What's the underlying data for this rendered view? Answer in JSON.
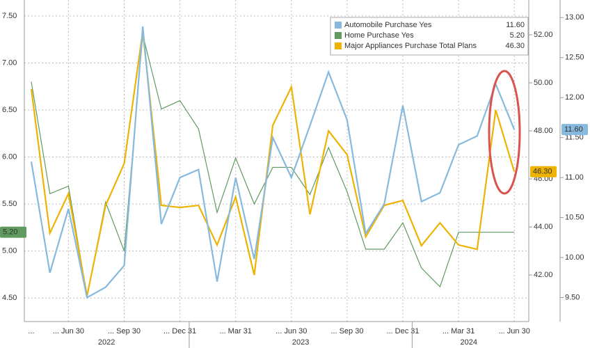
{
  "chart_data": {
    "type": "line",
    "categories": [
      "...",
      null,
      "... Jun 30",
      null,
      null,
      "... Sep 30",
      null,
      null,
      "... Dec 31",
      null,
      null,
      "... Mar 31",
      null,
      null,
      "... Jun 30",
      null,
      null,
      "... Sep 30",
      null,
      null,
      "... Dec 31",
      null,
      null,
      "... Mar 31",
      null,
      null,
      "... Jun 30"
    ],
    "years": [
      "2022",
      "2023",
      "2024"
    ],
    "series": [
      {
        "name": "Automobile Purchase Yes",
        "color": "#86b9dd",
        "axis": "y3",
        "last_label": "11.60",
        "values": [
          11.2,
          9.81,
          10.61,
          9.5,
          9.63,
          9.9,
          12.89,
          10.42,
          11.0,
          11.1,
          9.7,
          11.0,
          9.98,
          11.5,
          11.0,
          11.65,
          12.32,
          11.72,
          10.3,
          10.67,
          11.9,
          10.7,
          10.81,
          11.41,
          11.52,
          12.17,
          11.6
        ]
      },
      {
        "name": "Home Purchase Yes",
        "color": "#5f9a5f",
        "axis": "y",
        "last_label": "5.20",
        "values": [
          6.8,
          5.61,
          5.69,
          4.52,
          5.52,
          5.0,
          7.3,
          6.51,
          6.6,
          6.3,
          5.41,
          5.99,
          5.5,
          5.89,
          5.89,
          5.6,
          6.1,
          5.63,
          5.02,
          5.02,
          5.3,
          4.82,
          4.62,
          5.2,
          5.2,
          5.2,
          5.2
        ]
      },
      {
        "name": "Major Appliances Purchase Total Plans",
        "color": "#eeb300",
        "axis": "y2",
        "last_label": "46.30",
        "values": [
          49.74,
          43.74,
          45.39,
          41.13,
          44.9,
          46.64,
          52.14,
          44.9,
          44.81,
          44.9,
          43.25,
          45.25,
          42.0,
          48.23,
          49.83,
          44.52,
          48.0,
          47.01,
          43.59,
          44.9,
          45.1,
          43.22,
          44.17,
          43.25,
          43.07,
          48.87,
          46.3
        ]
      }
    ],
    "ylim": [
      4.25,
      7.67
    ],
    "yticks": [
      {
        "value": 4.5,
        "label": "4.50"
      },
      {
        "value": 5.0,
        "label": "5.00"
      },
      {
        "value": 5.5,
        "label": "5.50"
      },
      {
        "value": 6.0,
        "label": "6.00"
      },
      {
        "value": 6.5,
        "label": "6.50"
      },
      {
        "value": 7.0,
        "label": "7.00"
      },
      {
        "value": 7.5,
        "label": "7.50"
      }
    ],
    "y2lim": [
      40.06,
      53.45
    ],
    "y2ticks": [
      {
        "value": 42,
        "label": "42.00"
      },
      {
        "value": 44,
        "label": "44.00"
      },
      {
        "value": 46,
        "label": "46.00"
      },
      {
        "value": 48,
        "label": "48.00"
      },
      {
        "value": 50,
        "label": "50.00"
      },
      {
        "value": 52,
        "label": "52.00"
      }
    ],
    "y3lim": [
      9.2,
      13.22
    ],
    "y3ticks": [
      {
        "value": 9.5,
        "label": "9.50"
      },
      {
        "value": 10.0,
        "label": "10.00"
      },
      {
        "value": 10.5,
        "label": "10.50"
      },
      {
        "value": 11.0,
        "label": "11.00"
      },
      {
        "value": 11.5,
        "label": "11.50"
      },
      {
        "value": 12.0,
        "label": "12.00"
      },
      {
        "value": 12.5,
        "label": "12.50"
      },
      {
        "value": 13.0,
        "label": "13.00"
      }
    ],
    "grid": true
  }
}
